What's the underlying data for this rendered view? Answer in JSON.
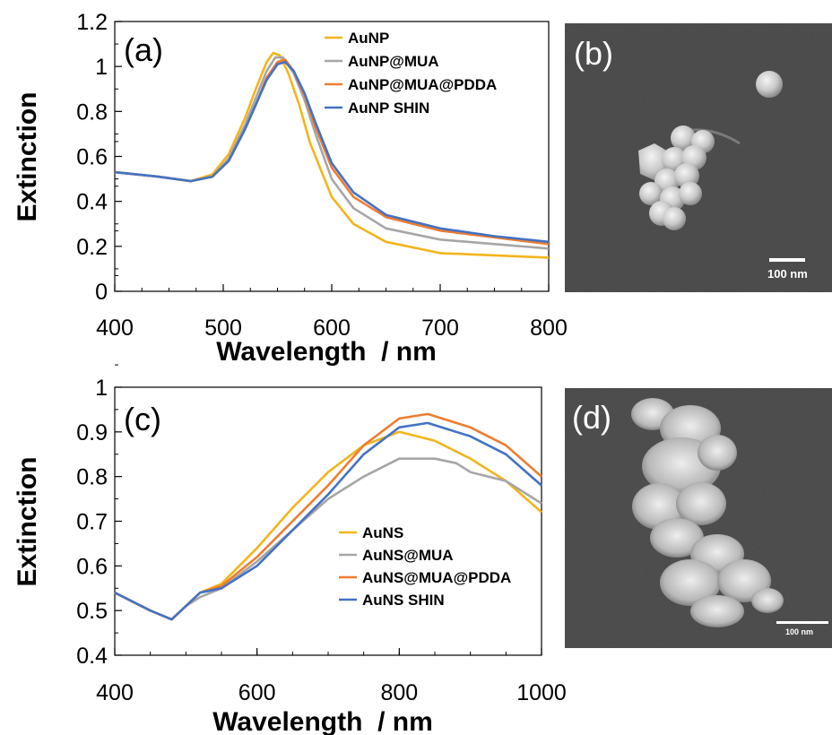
{
  "chart_data": [
    {
      "panel": "(a)",
      "type": "line",
      "xlabel": "Wavelength  / nm",
      "ylabel": "Extinction",
      "xlim": [
        400,
        800
      ],
      "ylim": [
        0,
        1.2
      ],
      "xticks": [
        "400",
        "500",
        "600",
        "700",
        "800"
      ],
      "yticks": [
        "0",
        "0.2",
        "0.4",
        "0.6",
        "0.8",
        "1",
        "1.2"
      ],
      "legend_position": "top-right",
      "grid": false,
      "series": [
        {
          "name": "AuNP",
          "color": "#F2B51B",
          "x": [
            400,
            440,
            470,
            490,
            505,
            520,
            530,
            540,
            546,
            552,
            560,
            570,
            580,
            600,
            620,
            650,
            700,
            750,
            800
          ],
          "y": [
            0.53,
            0.51,
            0.49,
            0.52,
            0.61,
            0.77,
            0.9,
            1.02,
            1.06,
            1.05,
            0.97,
            0.83,
            0.66,
            0.42,
            0.3,
            0.22,
            0.17,
            0.16,
            0.15
          ]
        },
        {
          "name": "AuNP@MUA",
          "color": "#A6A6A6",
          "x": [
            400,
            440,
            470,
            490,
            505,
            520,
            530,
            540,
            548,
            555,
            565,
            575,
            585,
            600,
            620,
            650,
            700,
            750,
            800
          ],
          "y": [
            0.53,
            0.51,
            0.49,
            0.51,
            0.59,
            0.74,
            0.86,
            0.98,
            1.04,
            1.04,
            0.97,
            0.85,
            0.7,
            0.5,
            0.37,
            0.28,
            0.23,
            0.21,
            0.19
          ]
        },
        {
          "name": "AuNP@MUA@PDDA",
          "color": "#ED7D31",
          "x": [
            400,
            440,
            470,
            490,
            505,
            520,
            530,
            540,
            550,
            557,
            565,
            575,
            585,
            600,
            620,
            650,
            700,
            750,
            800
          ],
          "y": [
            0.53,
            0.51,
            0.49,
            0.51,
            0.58,
            0.72,
            0.83,
            0.95,
            1.02,
            1.03,
            0.98,
            0.87,
            0.73,
            0.55,
            0.42,
            0.33,
            0.27,
            0.24,
            0.21
          ]
        },
        {
          "name": "AuNP SHIN",
          "color": "#4472C4",
          "x": [
            400,
            440,
            470,
            490,
            505,
            520,
            530,
            540,
            550,
            557,
            565,
            575,
            585,
            600,
            620,
            650,
            700,
            750,
            800
          ],
          "y": [
            0.53,
            0.51,
            0.49,
            0.51,
            0.58,
            0.72,
            0.83,
            0.94,
            1.01,
            1.02,
            0.98,
            0.88,
            0.75,
            0.57,
            0.44,
            0.34,
            0.28,
            0.245,
            0.22
          ]
        }
      ]
    },
    {
      "panel": "(c)",
      "type": "line",
      "xlabel": "Wavelength  / nm",
      "ylabel": "Extinction",
      "xlim": [
        400,
        1000
      ],
      "ylim": [
        0.4,
        1
      ],
      "xticks": [
        "400",
        "600",
        "800",
        "1000"
      ],
      "yticks": [
        "0.4",
        "0.5",
        "0.6",
        "0.7",
        "0.8",
        "0.9",
        "1"
      ],
      "legend_position": "lower-right",
      "grid": false,
      "series": [
        {
          "name": "AuNS",
          "color": "#F2B51B",
          "x": [
            400,
            450,
            480,
            500,
            520,
            550,
            600,
            650,
            700,
            750,
            800,
            850,
            900,
            950,
            1000
          ],
          "y": [
            0.54,
            0.5,
            0.48,
            0.51,
            0.54,
            0.56,
            0.64,
            0.73,
            0.81,
            0.87,
            0.9,
            0.88,
            0.84,
            0.79,
            0.72
          ]
        },
        {
          "name": "AuNS@MUA",
          "color": "#A6A6A6",
          "x": [
            400,
            450,
            480,
            500,
            520,
            550,
            600,
            650,
            700,
            750,
            800,
            850,
            880,
            900,
            950,
            1000
          ],
          "y": [
            0.54,
            0.5,
            0.48,
            0.51,
            0.53,
            0.55,
            0.61,
            0.68,
            0.75,
            0.8,
            0.84,
            0.84,
            0.83,
            0.81,
            0.79,
            0.74
          ]
        },
        {
          "name": "AuNS@MUA@PDDA",
          "color": "#ED7D31",
          "x": [
            400,
            450,
            480,
            500,
            520,
            550,
            600,
            650,
            700,
            750,
            800,
            840,
            900,
            950,
            1000
          ],
          "y": [
            0.54,
            0.5,
            0.48,
            0.51,
            0.54,
            0.555,
            0.62,
            0.7,
            0.78,
            0.87,
            0.93,
            0.94,
            0.91,
            0.87,
            0.8
          ]
        },
        {
          "name": "AuNS SHIN",
          "color": "#4472C4",
          "x": [
            400,
            450,
            480,
            500,
            520,
            550,
            600,
            650,
            700,
            750,
            800,
            840,
            900,
            950,
            1000
          ],
          "y": [
            0.54,
            0.5,
            0.48,
            0.51,
            0.54,
            0.55,
            0.6,
            0.68,
            0.76,
            0.85,
            0.91,
            0.92,
            0.89,
            0.85,
            0.78
          ]
        }
      ]
    }
  ],
  "images": {
    "b": {
      "label": "(b)",
      "scale_text": "100 nm"
    },
    "d": {
      "label": "(d)",
      "scale_text": "100 nm"
    }
  }
}
